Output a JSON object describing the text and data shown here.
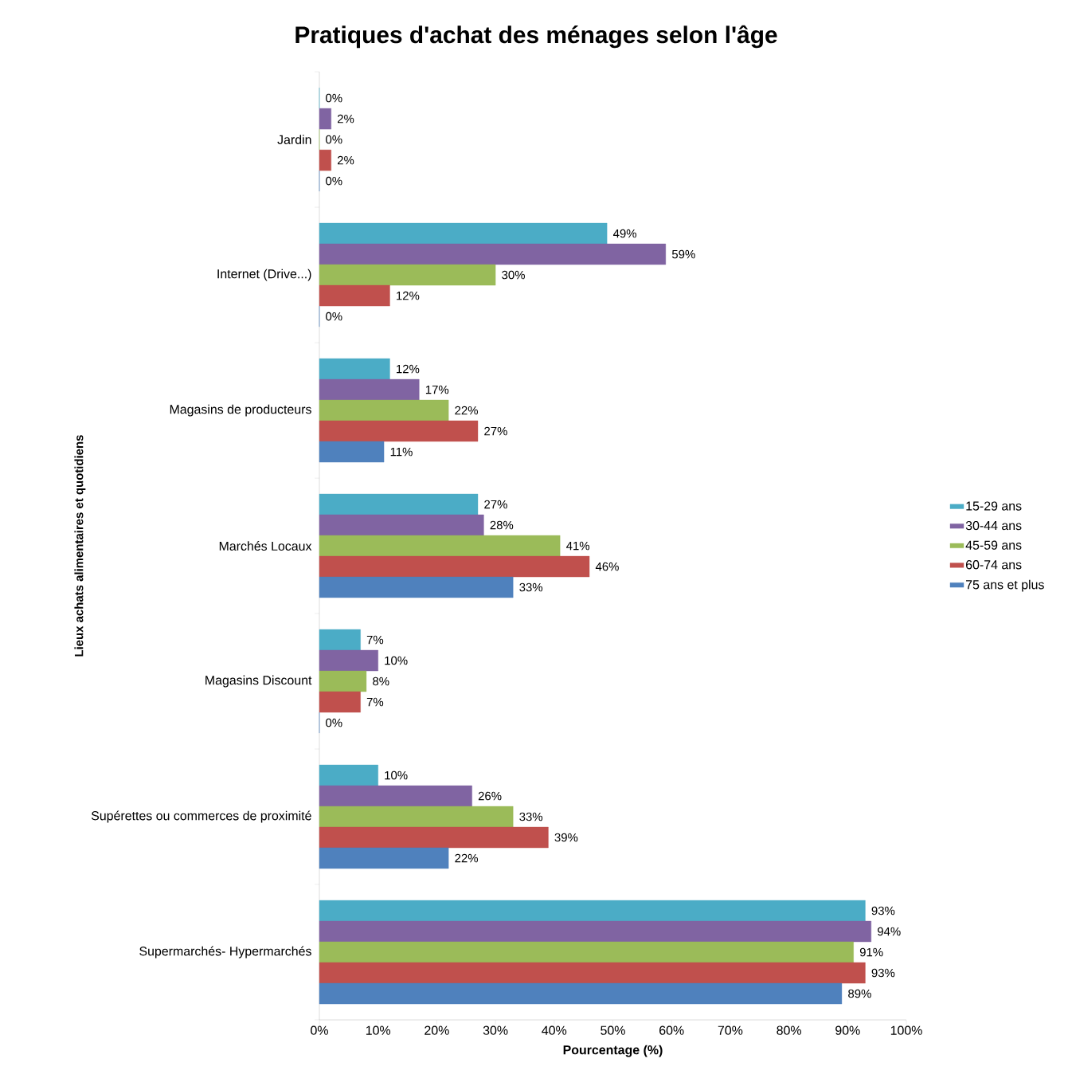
{
  "chart_data": {
    "type": "bar",
    "orientation": "horizontal",
    "title": "Pratiques d'achat des ménages selon l'âge",
    "xlabel": "Pourcentage (%)",
    "ylabel": "Lieux achats alimentaires et quotidiens",
    "categories": [
      "Jardin",
      "Internet (Drive...)",
      "Magasins de producteurs",
      "Marchés Locaux",
      "Magasins Discount",
      "Supérettes ou commerces de proximité",
      "Supermarchés- Hypermarchés"
    ],
    "series": [
      {
        "name": "15-29 ans",
        "color": "#4bacc6",
        "values": [
          0,
          49,
          12,
          27,
          7,
          10,
          93
        ],
        "value_labels": [
          "0%",
          "49%",
          "12%",
          "27%",
          "7%",
          "10%",
          "93%"
        ]
      },
      {
        "name": "30-44 ans",
        "color": "#8064a2",
        "values": [
          2,
          59,
          17,
          28,
          10,
          26,
          94
        ],
        "value_labels": [
          "2%",
          "59%",
          "17%",
          "28%",
          "10%",
          "26%",
          "94%"
        ]
      },
      {
        "name": "45-59 ans",
        "color": "#9bbb59",
        "values": [
          0,
          30,
          22,
          41,
          8,
          33,
          91
        ],
        "value_labels": [
          "0%",
          "30%",
          "22%",
          "41%",
          "8%",
          "33%",
          "91%"
        ]
      },
      {
        "name": "60-74 ans",
        "color": "#c0504d",
        "values": [
          2,
          12,
          27,
          46,
          7,
          39,
          93
        ],
        "value_labels": [
          "2%",
          "12%",
          "27%",
          "46%",
          "7%",
          "39%",
          "93%"
        ]
      },
      {
        "name": "75 ans et plus",
        "color": "#4f81bd",
        "values": [
          0,
          0,
          11,
          33,
          0,
          22,
          89
        ],
        "value_labels": [
          "0%",
          "0%",
          "11%",
          "33%",
          "0%",
          "22%",
          "89%"
        ]
      }
    ],
    "xlim": [
      0,
      100
    ],
    "xticks": [
      {
        "value": 0,
        "label": "0%"
      },
      {
        "value": 10,
        "label": "10%"
      },
      {
        "value": 20,
        "label": "20%"
      },
      {
        "value": 30,
        "label": "30%"
      },
      {
        "value": 40,
        "label": "40%"
      },
      {
        "value": 50,
        "label": "50%"
      },
      {
        "value": 60,
        "label": "60%"
      },
      {
        "value": 70,
        "label": "70%"
      },
      {
        "value": 80,
        "label": "80%"
      },
      {
        "value": 90,
        "label": "90%"
      },
      {
        "value": 100,
        "label": "100%"
      }
    ],
    "legend": "right",
    "grid": false
  }
}
